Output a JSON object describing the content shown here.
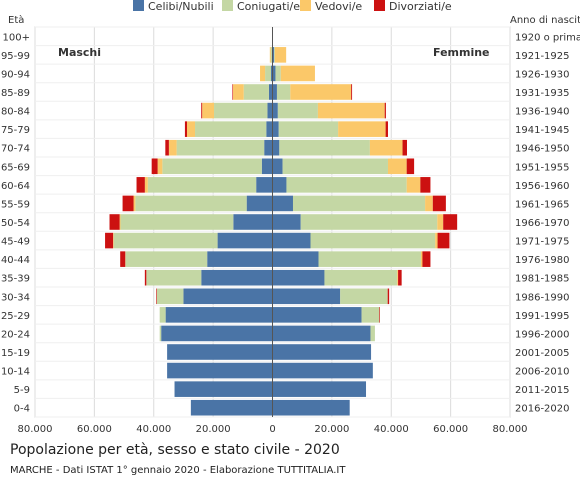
{
  "chart_data": {
    "type": "bar",
    "orientation": "horizontal-population-pyramid",
    "title": "Popolazione per età, sesso e stato civile - 2020",
    "subtitle": "MARCHE - Dati ISTAT 1° gennaio 2020 - Elaborazione TUTTITALIA.IT",
    "y_left_label": "Età",
    "y_right_label": "Anno di nascita",
    "left_side_label": "Maschi",
    "right_side_label": "Femmine",
    "x_ticks": [
      "80.000",
      "60.000",
      "40.000",
      "20.000",
      "0",
      "20.000",
      "40.000",
      "60.000",
      "80.000"
    ],
    "xlim": [
      -80000,
      80000
    ],
    "grid": true,
    "legend_position": "top",
    "series": [
      {
        "name": "Celibi/Nubili",
        "color": "#4a74a6"
      },
      {
        "name": "Coniugati/e",
        "color": "#c4d7a4"
      },
      {
        "name": "Vedovi/e",
        "color": "#fbc869"
      },
      {
        "name": "Divorziati/e",
        "color": "#cc1111"
      }
    ],
    "age_classes": [
      "100+",
      "95-99",
      "90-94",
      "85-89",
      "80-84",
      "75-79",
      "70-74",
      "65-69",
      "60-64",
      "55-59",
      "50-54",
      "45-49",
      "40-44",
      "35-39",
      "30-34",
      "25-29",
      "20-24",
      "15-19",
      "10-14",
      "5-9",
      "0-4"
    ],
    "birth_years": [
      "1920 o prima",
      "1921-1925",
      "1926-1930",
      "1931-1935",
      "1936-1940",
      "1941-1945",
      "1946-1950",
      "1951-1955",
      "1956-1960",
      "1961-1965",
      "1966-1970",
      "1971-1975",
      "1976-1980",
      "1981-1985",
      "1986-1990",
      "1991-1995",
      "1996-2000",
      "2001-2005",
      "2006-2010",
      "2011-2015",
      "2016-2020"
    ],
    "males": {
      "Celibi/Nubili": [
        0,
        200,
        500,
        1200,
        1700,
        2100,
        2800,
        3600,
        5500,
        8700,
        13200,
        18500,
        22000,
        24000,
        30000,
        36000,
        37500,
        35500,
        35500,
        33000,
        27500
      ],
      "Coniugati/e": [
        0,
        400,
        2000,
        8500,
        18000,
        24000,
        29500,
        33500,
        36500,
        37500,
        38000,
        35000,
        27500,
        18500,
        9000,
        2000,
        500,
        0,
        0,
        0,
        0
      ],
      "Vedovi/e": [
        0,
        300,
        1700,
        3600,
        4000,
        2700,
        2600,
        1600,
        1000,
        600,
        300,
        200,
        100,
        0,
        0,
        0,
        0,
        0,
        0,
        0,
        0
      ],
      "Divorziati/e": [
        0,
        0,
        0,
        200,
        300,
        700,
        1200,
        2000,
        2800,
        3700,
        3400,
        2700,
        1700,
        500,
        200,
        0,
        0,
        0,
        0,
        0,
        0
      ]
    },
    "females": {
      "Celibi/Nubili": [
        0,
        500,
        1000,
        1500,
        1800,
        2100,
        2300,
        3400,
        4700,
        6900,
        9500,
        12800,
        15500,
        17500,
        22800,
        30000,
        33000,
        33200,
        33800,
        31500,
        26000
      ],
      "Coniugati/e": [
        0,
        300,
        1800,
        4500,
        13500,
        20000,
        30500,
        35500,
        40500,
        44500,
        46000,
        42000,
        34500,
        24500,
        16000,
        6000,
        1500,
        0,
        0,
        0,
        0
      ],
      "Vedovi/e": [
        0,
        3800,
        11500,
        20500,
        22500,
        16000,
        11000,
        6300,
        4600,
        2600,
        2000,
        800,
        500,
        300,
        0,
        0,
        0,
        0,
        0,
        0,
        0
      ],
      "Divorziati/e": [
        0,
        0,
        0,
        300,
        400,
        800,
        1500,
        2500,
        3400,
        4400,
        4700,
        4000,
        2700,
        1200,
        500,
        200,
        0,
        0,
        0,
        0,
        0
      ]
    }
  }
}
